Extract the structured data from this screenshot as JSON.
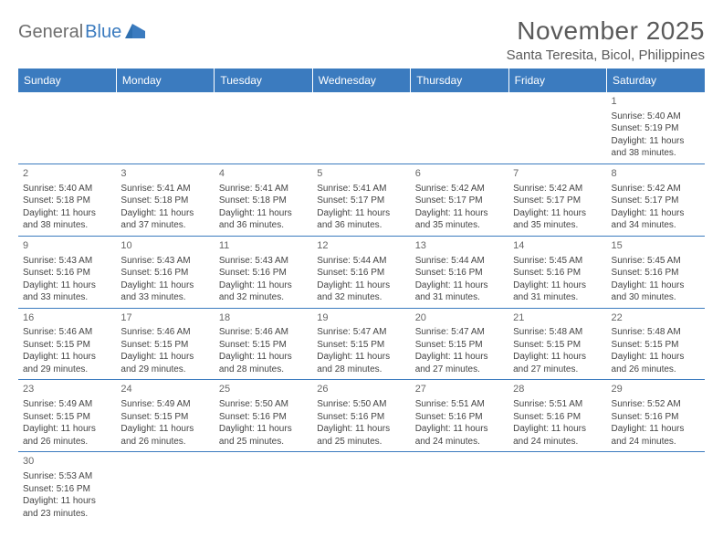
{
  "logo": {
    "general": "General",
    "blue": "Blue"
  },
  "title": "November 2025",
  "location": "Santa Teresita, Bicol, Philippines",
  "colors": {
    "header_bg": "#3b7bbf",
    "header_text": "#ffffff",
    "border": "#3b7bbf",
    "body_text": "#444444",
    "title_text": "#5a5a5a",
    "logo_gray": "#6d6d6d",
    "logo_blue": "#3b7bbf",
    "page_bg": "#ffffff"
  },
  "day_headers": [
    "Sunday",
    "Monday",
    "Tuesday",
    "Wednesday",
    "Thursday",
    "Friday",
    "Saturday"
  ],
  "weeks": [
    [
      null,
      null,
      null,
      null,
      null,
      null,
      {
        "n": "1",
        "rise": "Sunrise: 5:40 AM",
        "set": "Sunset: 5:19 PM",
        "d1": "Daylight: 11 hours",
        "d2": "and 38 minutes."
      }
    ],
    [
      {
        "n": "2",
        "rise": "Sunrise: 5:40 AM",
        "set": "Sunset: 5:18 PM",
        "d1": "Daylight: 11 hours",
        "d2": "and 38 minutes."
      },
      {
        "n": "3",
        "rise": "Sunrise: 5:41 AM",
        "set": "Sunset: 5:18 PM",
        "d1": "Daylight: 11 hours",
        "d2": "and 37 minutes."
      },
      {
        "n": "4",
        "rise": "Sunrise: 5:41 AM",
        "set": "Sunset: 5:18 PM",
        "d1": "Daylight: 11 hours",
        "d2": "and 36 minutes."
      },
      {
        "n": "5",
        "rise": "Sunrise: 5:41 AM",
        "set": "Sunset: 5:17 PM",
        "d1": "Daylight: 11 hours",
        "d2": "and 36 minutes."
      },
      {
        "n": "6",
        "rise": "Sunrise: 5:42 AM",
        "set": "Sunset: 5:17 PM",
        "d1": "Daylight: 11 hours",
        "d2": "and 35 minutes."
      },
      {
        "n": "7",
        "rise": "Sunrise: 5:42 AM",
        "set": "Sunset: 5:17 PM",
        "d1": "Daylight: 11 hours",
        "d2": "and 35 minutes."
      },
      {
        "n": "8",
        "rise": "Sunrise: 5:42 AM",
        "set": "Sunset: 5:17 PM",
        "d1": "Daylight: 11 hours",
        "d2": "and 34 minutes."
      }
    ],
    [
      {
        "n": "9",
        "rise": "Sunrise: 5:43 AM",
        "set": "Sunset: 5:16 PM",
        "d1": "Daylight: 11 hours",
        "d2": "and 33 minutes."
      },
      {
        "n": "10",
        "rise": "Sunrise: 5:43 AM",
        "set": "Sunset: 5:16 PM",
        "d1": "Daylight: 11 hours",
        "d2": "and 33 minutes."
      },
      {
        "n": "11",
        "rise": "Sunrise: 5:43 AM",
        "set": "Sunset: 5:16 PM",
        "d1": "Daylight: 11 hours",
        "d2": "and 32 minutes."
      },
      {
        "n": "12",
        "rise": "Sunrise: 5:44 AM",
        "set": "Sunset: 5:16 PM",
        "d1": "Daylight: 11 hours",
        "d2": "and 32 minutes."
      },
      {
        "n": "13",
        "rise": "Sunrise: 5:44 AM",
        "set": "Sunset: 5:16 PM",
        "d1": "Daylight: 11 hours",
        "d2": "and 31 minutes."
      },
      {
        "n": "14",
        "rise": "Sunrise: 5:45 AM",
        "set": "Sunset: 5:16 PM",
        "d1": "Daylight: 11 hours",
        "d2": "and 31 minutes."
      },
      {
        "n": "15",
        "rise": "Sunrise: 5:45 AM",
        "set": "Sunset: 5:16 PM",
        "d1": "Daylight: 11 hours",
        "d2": "and 30 minutes."
      }
    ],
    [
      {
        "n": "16",
        "rise": "Sunrise: 5:46 AM",
        "set": "Sunset: 5:15 PM",
        "d1": "Daylight: 11 hours",
        "d2": "and 29 minutes."
      },
      {
        "n": "17",
        "rise": "Sunrise: 5:46 AM",
        "set": "Sunset: 5:15 PM",
        "d1": "Daylight: 11 hours",
        "d2": "and 29 minutes."
      },
      {
        "n": "18",
        "rise": "Sunrise: 5:46 AM",
        "set": "Sunset: 5:15 PM",
        "d1": "Daylight: 11 hours",
        "d2": "and 28 minutes."
      },
      {
        "n": "19",
        "rise": "Sunrise: 5:47 AM",
        "set": "Sunset: 5:15 PM",
        "d1": "Daylight: 11 hours",
        "d2": "and 28 minutes."
      },
      {
        "n": "20",
        "rise": "Sunrise: 5:47 AM",
        "set": "Sunset: 5:15 PM",
        "d1": "Daylight: 11 hours",
        "d2": "and 27 minutes."
      },
      {
        "n": "21",
        "rise": "Sunrise: 5:48 AM",
        "set": "Sunset: 5:15 PM",
        "d1": "Daylight: 11 hours",
        "d2": "and 27 minutes."
      },
      {
        "n": "22",
        "rise": "Sunrise: 5:48 AM",
        "set": "Sunset: 5:15 PM",
        "d1": "Daylight: 11 hours",
        "d2": "and 26 minutes."
      }
    ],
    [
      {
        "n": "23",
        "rise": "Sunrise: 5:49 AM",
        "set": "Sunset: 5:15 PM",
        "d1": "Daylight: 11 hours",
        "d2": "and 26 minutes."
      },
      {
        "n": "24",
        "rise": "Sunrise: 5:49 AM",
        "set": "Sunset: 5:15 PM",
        "d1": "Daylight: 11 hours",
        "d2": "and 26 minutes."
      },
      {
        "n": "25",
        "rise": "Sunrise: 5:50 AM",
        "set": "Sunset: 5:16 PM",
        "d1": "Daylight: 11 hours",
        "d2": "and 25 minutes."
      },
      {
        "n": "26",
        "rise": "Sunrise: 5:50 AM",
        "set": "Sunset: 5:16 PM",
        "d1": "Daylight: 11 hours",
        "d2": "and 25 minutes."
      },
      {
        "n": "27",
        "rise": "Sunrise: 5:51 AM",
        "set": "Sunset: 5:16 PM",
        "d1": "Daylight: 11 hours",
        "d2": "and 24 minutes."
      },
      {
        "n": "28",
        "rise": "Sunrise: 5:51 AM",
        "set": "Sunset: 5:16 PM",
        "d1": "Daylight: 11 hours",
        "d2": "and 24 minutes."
      },
      {
        "n": "29",
        "rise": "Sunrise: 5:52 AM",
        "set": "Sunset: 5:16 PM",
        "d1": "Daylight: 11 hours",
        "d2": "and 24 minutes."
      }
    ],
    [
      {
        "n": "30",
        "rise": "Sunrise: 5:53 AM",
        "set": "Sunset: 5:16 PM",
        "d1": "Daylight: 11 hours",
        "d2": "and 23 minutes."
      },
      null,
      null,
      null,
      null,
      null,
      null
    ]
  ]
}
